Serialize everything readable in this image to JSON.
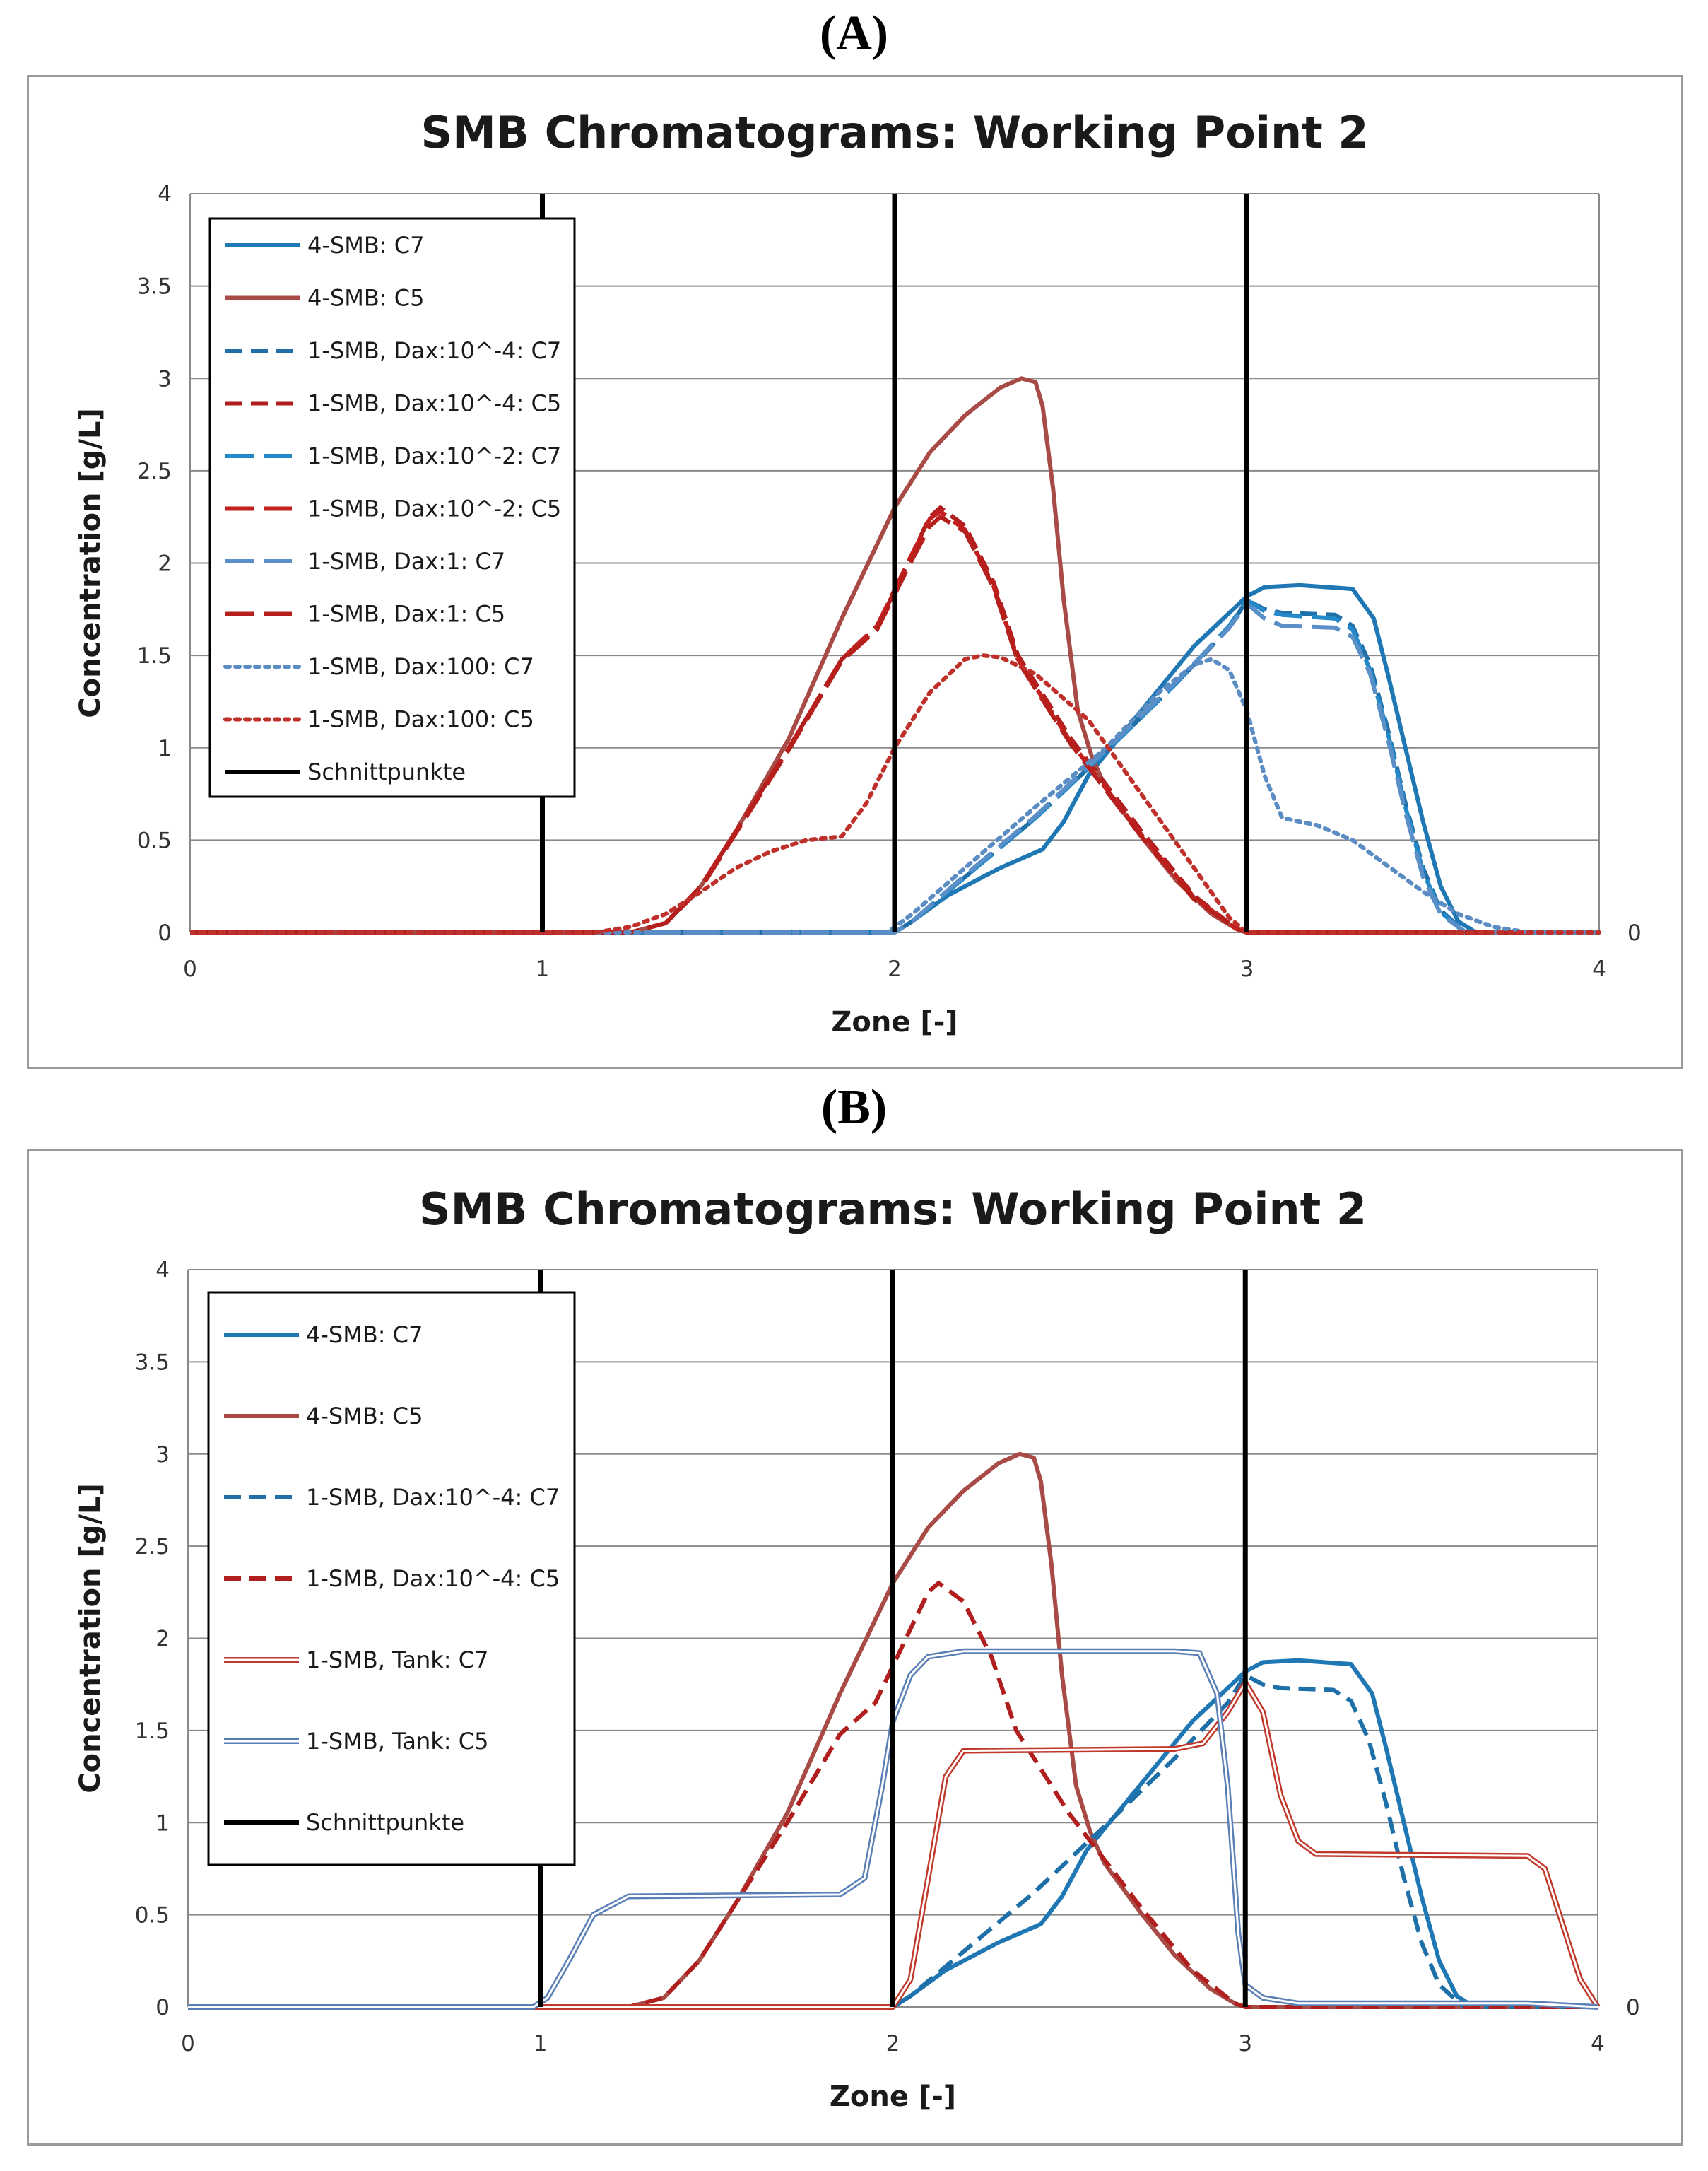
{
  "panels": [
    {
      "label": "(A)",
      "chart_data": {
        "type": "line",
        "title": "SMB Chromatograms: Working Point 2",
        "xlabel": "Zone [-]",
        "ylabel": "Concentration [g/L]",
        "xlim": [
          0,
          4
        ],
        "ylim": [
          0,
          4
        ],
        "xticks": [
          "0",
          "1",
          "2",
          "3",
          "4"
        ],
        "yticks": [
          "0",
          "0.5",
          "1",
          "1.5",
          "2",
          "2.5",
          "3",
          "3.5",
          "4"
        ],
        "secondary_y_tick": "0",
        "grid": true,
        "legend_position": "top-left",
        "vlines": [
          1,
          2,
          3
        ],
        "series": [
          {
            "name": "4-SMB: C7",
            "color": "#1f77b4",
            "style": "solid",
            "width": 6,
            "x": [
              0,
              2.0,
              2.05,
              2.15,
              2.3,
              2.42,
              2.48,
              2.55,
              2.7,
              2.85,
              3.0,
              3.05,
              3.15,
              3.3,
              3.36,
              3.4,
              3.45,
              3.5,
              3.55,
              3.6,
              3.65,
              4.0
            ],
            "y": [
              0,
              0,
              0.06,
              0.2,
              0.35,
              0.45,
              0.6,
              0.85,
              1.2,
              1.55,
              1.82,
              1.87,
              1.88,
              1.86,
              1.7,
              1.4,
              1.0,
              0.6,
              0.25,
              0.06,
              0,
              0
            ]
          },
          {
            "name": "4-SMB: C5",
            "color": "#a84a45",
            "style": "solid",
            "width": 6,
            "x": [
              0,
              1.25,
              1.35,
              1.45,
              1.55,
              1.7,
              1.85,
              2.0,
              2.1,
              2.2,
              2.3,
              2.36,
              2.4,
              2.42,
              2.45,
              2.48,
              2.52,
              2.56,
              2.6,
              2.7,
              2.8,
              2.9,
              2.97,
              3.0,
              4.0
            ],
            "y": [
              0,
              0,
              0.05,
              0.25,
              0.55,
              1.05,
              1.7,
              2.3,
              2.6,
              2.8,
              2.95,
              3.0,
              2.98,
              2.85,
              2.4,
              1.8,
              1.2,
              0.95,
              0.78,
              0.52,
              0.28,
              0.1,
              0.02,
              0,
              0
            ]
          },
          {
            "name": "1-SMB, Dax:10^-4: C7",
            "color": "#1f6fa8",
            "style": "dashed",
            "width": 6,
            "x": [
              0,
              2.0,
              2.05,
              2.2,
              2.4,
              2.6,
              2.8,
              2.95,
              3.0,
              3.05,
              3.1,
              3.25,
              3.3,
              3.35,
              3.4,
              3.45,
              3.5,
              3.55,
              3.62,
              4.0
            ],
            "y": [
              0,
              0,
              0.06,
              0.3,
              0.62,
              0.98,
              1.35,
              1.65,
              1.8,
              1.75,
              1.73,
              1.72,
              1.66,
              1.45,
              1.1,
              0.7,
              0.35,
              0.12,
              0,
              0
            ]
          },
          {
            "name": "1-SMB, Dax:10^-4: C5",
            "color": "#b01e1e",
            "style": "dashed",
            "width": 6,
            "x": [
              0,
              1.25,
              1.35,
              1.45,
              1.55,
              1.7,
              1.85,
              1.95,
              2.05,
              2.1,
              2.13,
              2.2,
              2.28,
              2.35,
              2.5,
              2.7,
              2.85,
              2.97,
              3.0,
              4.0
            ],
            "y": [
              0,
              0,
              0.05,
              0.25,
              0.55,
              1.0,
              1.48,
              1.65,
              2.05,
              2.25,
              2.3,
              2.2,
              1.9,
              1.5,
              1.05,
              0.55,
              0.2,
              0.02,
              0,
              0
            ]
          },
          {
            "name": "1-SMB, Dax:10^-2: C7",
            "color": "#2389c9",
            "style": "longdash",
            "width": 6,
            "x": [
              0,
              2.0,
              2.05,
              2.2,
              2.4,
              2.6,
              2.8,
              2.95,
              3.0,
              3.05,
              3.1,
              3.25,
              3.3,
              3.35,
              3.4,
              3.45,
              3.5,
              3.55,
              3.62,
              4.0
            ],
            "y": [
              0,
              0,
              0.06,
              0.3,
              0.62,
              0.98,
              1.35,
              1.66,
              1.8,
              1.74,
              1.72,
              1.7,
              1.64,
              1.42,
              1.08,
              0.68,
              0.33,
              0.11,
              0,
              0
            ]
          },
          {
            "name": "1-SMB, Dax:10^-2: C5",
            "color": "#c41f1f",
            "style": "longdash",
            "width": 6,
            "x": [
              0,
              1.25,
              1.35,
              1.45,
              1.55,
              1.7,
              1.85,
              1.95,
              2.05,
              2.1,
              2.13,
              2.2,
              2.28,
              2.35,
              2.5,
              2.7,
              2.85,
              2.97,
              3.0,
              4.0
            ],
            "y": [
              0,
              0,
              0.05,
              0.25,
              0.55,
              1.0,
              1.48,
              1.66,
              2.05,
              2.24,
              2.28,
              2.18,
              1.88,
              1.48,
              1.03,
              0.53,
              0.19,
              0.02,
              0,
              0
            ]
          },
          {
            "name": "1-SMB, Dax:1: C7",
            "color": "#5a8fc8",
            "style": "longdash",
            "width": 6,
            "x": [
              0,
              2.0,
              2.05,
              2.2,
              2.4,
              2.6,
              2.8,
              2.95,
              3.0,
              3.05,
              3.1,
              3.25,
              3.3,
              3.35,
              3.4,
              3.45,
              3.5,
              3.55,
              3.62,
              4.0
            ],
            "y": [
              0,
              0,
              0.06,
              0.31,
              0.63,
              0.99,
              1.36,
              1.65,
              1.78,
              1.7,
              1.66,
              1.65,
              1.6,
              1.4,
              1.05,
              0.65,
              0.3,
              0.1,
              0,
              0
            ]
          },
          {
            "name": "1-SMB, Dax:1: C5",
            "color": "#b5201d",
            "style": "longdash",
            "width": 6,
            "x": [
              0,
              1.25,
              1.35,
              1.45,
              1.55,
              1.7,
              1.85,
              1.95,
              2.05,
              2.1,
              2.13,
              2.2,
              2.28,
              2.35,
              2.5,
              2.7,
              2.85,
              2.97,
              3.0,
              4.0
            ],
            "y": [
              0,
              0,
              0.05,
              0.24,
              0.54,
              0.99,
              1.47,
              1.64,
              2.02,
              2.2,
              2.25,
              2.17,
              1.87,
              1.47,
              1.02,
              0.52,
              0.18,
              0.02,
              0,
              0
            ]
          },
          {
            "name": "1-SMB, Dax:100: C7",
            "color": "#5b8dc4",
            "style": "dotted",
            "width": 6,
            "x": [
              0,
              1.98,
              2.05,
              2.2,
              2.4,
              2.6,
              2.75,
              2.85,
              2.9,
              2.95,
              3.0,
              3.05,
              3.1,
              3.2,
              3.3,
              3.4,
              3.5,
              3.6,
              3.7,
              3.8,
              4.0
            ],
            "y": [
              0,
              0,
              0.1,
              0.35,
              0.68,
              1.0,
              1.3,
              1.45,
              1.48,
              1.42,
              1.2,
              0.85,
              0.62,
              0.58,
              0.5,
              0.36,
              0.22,
              0.1,
              0.03,
              0,
              0
            ]
          },
          {
            "name": "1-SMB, Dax:100: C5",
            "color": "#c0302b",
            "style": "dotted",
            "width": 6,
            "x": [
              0,
              1.15,
              1.25,
              1.35,
              1.45,
              1.55,
              1.65,
              1.75,
              1.85,
              1.92,
              2.0,
              2.1,
              2.2,
              2.25,
              2.3,
              2.4,
              2.55,
              2.7,
              2.85,
              2.95,
              3.0,
              4.0
            ],
            "y": [
              0,
              0,
              0.03,
              0.1,
              0.22,
              0.35,
              0.44,
              0.5,
              0.52,
              0.7,
              1.0,
              1.3,
              1.48,
              1.5,
              1.49,
              1.4,
              1.15,
              0.75,
              0.35,
              0.08,
              0,
              0
            ]
          }
        ],
        "vline_legend": {
          "name": "Schnittpunkte",
          "color": "#000000"
        }
      }
    },
    {
      "label": "(B)",
      "chart_data": {
        "type": "line",
        "title": "SMB Chromatograms: Working Point 2",
        "xlabel": "Zone [-]",
        "ylabel": "Concentration [g/L]",
        "xlim": [
          0,
          4
        ],
        "ylim": [
          0,
          4
        ],
        "xticks": [
          "0",
          "1",
          "2",
          "3",
          "4"
        ],
        "yticks": [
          "0",
          "0.5",
          "1",
          "1.5",
          "2",
          "2.5",
          "3",
          "3.5",
          "4"
        ],
        "secondary_y_tick": "0",
        "grid": true,
        "legend_position": "top-left",
        "vlines": [
          1,
          2,
          3
        ],
        "series": [
          {
            "name": "4-SMB: C7",
            "color": "#1f77b4",
            "style": "solid",
            "width": 6,
            "x": [
              0,
              2.0,
              2.05,
              2.15,
              2.3,
              2.42,
              2.48,
              2.55,
              2.7,
              2.85,
              3.0,
              3.05,
              3.15,
              3.3,
              3.36,
              3.4,
              3.45,
              3.5,
              3.55,
              3.6,
              3.65,
              4.0
            ],
            "y": [
              0,
              0,
              0.06,
              0.2,
              0.35,
              0.45,
              0.6,
              0.85,
              1.2,
              1.55,
              1.82,
              1.87,
              1.88,
              1.86,
              1.7,
              1.4,
              1.0,
              0.6,
              0.25,
              0.06,
              0,
              0
            ]
          },
          {
            "name": "4-SMB: C5",
            "color": "#a84a45",
            "style": "solid",
            "width": 6,
            "x": [
              0,
              1.25,
              1.35,
              1.45,
              1.55,
              1.7,
              1.85,
              2.0,
              2.1,
              2.2,
              2.3,
              2.36,
              2.4,
              2.42,
              2.45,
              2.48,
              2.52,
              2.56,
              2.6,
              2.7,
              2.8,
              2.9,
              2.97,
              3.0,
              4.0
            ],
            "y": [
              0,
              0,
              0.05,
              0.25,
              0.55,
              1.05,
              1.7,
              2.3,
              2.6,
              2.8,
              2.95,
              3.0,
              2.98,
              2.85,
              2.4,
              1.8,
              1.2,
              0.95,
              0.78,
              0.52,
              0.28,
              0.1,
              0.02,
              0,
              0
            ]
          },
          {
            "name": "1-SMB, Dax:10^-4: C7",
            "color": "#1f6fa8",
            "style": "dashed",
            "width": 6,
            "x": [
              0,
              2.0,
              2.05,
              2.2,
              2.4,
              2.6,
              2.8,
              2.95,
              3.0,
              3.05,
              3.1,
              3.25,
              3.3,
              3.35,
              3.4,
              3.45,
              3.5,
              3.55,
              3.62,
              4.0
            ],
            "y": [
              0,
              0,
              0.06,
              0.3,
              0.62,
              0.98,
              1.35,
              1.65,
              1.8,
              1.75,
              1.73,
              1.72,
              1.66,
              1.45,
              1.1,
              0.7,
              0.35,
              0.12,
              0,
              0
            ]
          },
          {
            "name": "1-SMB, Dax:10^-4: C5",
            "color": "#b01e1e",
            "style": "dashed",
            "width": 6,
            "x": [
              0,
              1.25,
              1.35,
              1.45,
              1.55,
              1.7,
              1.85,
              1.95,
              2.05,
              2.1,
              2.13,
              2.2,
              2.28,
              2.35,
              2.5,
              2.7,
              2.85,
              2.97,
              3.0,
              4.0
            ],
            "y": [
              0,
              0,
              0.05,
              0.25,
              0.55,
              1.0,
              1.48,
              1.65,
              2.05,
              2.25,
              2.3,
              2.2,
              1.9,
              1.5,
              1.05,
              0.55,
              0.2,
              0.02,
              0,
              0
            ]
          },
          {
            "name": "1-SMB, Tank: C7",
            "color": "#c0392b",
            "style": "double",
            "width": 5,
            "x": [
              0,
              2.0,
              2.05,
              2.1,
              2.15,
              2.2,
              2.8,
              2.88,
              2.95,
              3.0,
              3.05,
              3.1,
              3.15,
              3.2,
              3.8,
              3.85,
              3.9,
              3.95,
              4.0
            ],
            "y": [
              0,
              0,
              0.15,
              0.7,
              1.25,
              1.39,
              1.4,
              1.43,
              1.6,
              1.76,
              1.6,
              1.15,
              0.9,
              0.83,
              0.82,
              0.75,
              0.45,
              0.15,
              0
            ]
          },
          {
            "name": "1-SMB, Tank: C5",
            "color": "#5a7fb5",
            "style": "double",
            "width": 5,
            "x": [
              0,
              0.98,
              1.02,
              1.08,
              1.15,
              1.25,
              1.85,
              1.92,
              1.97,
              2.0,
              2.05,
              2.1,
              2.2,
              2.8,
              2.87,
              2.92,
              2.95,
              2.98,
              3.0,
              3.05,
              3.15,
              3.8,
              3.9,
              4.0
            ],
            "y": [
              0,
              0,
              0.05,
              0.25,
              0.5,
              0.6,
              0.61,
              0.7,
              1.2,
              1.55,
              1.8,
              1.9,
              1.93,
              1.93,
              1.92,
              1.7,
              1.2,
              0.4,
              0.12,
              0.05,
              0.02,
              0.02,
              0.01,
              0
            ]
          }
        ],
        "vline_legend": {
          "name": "Schnittpunkte",
          "color": "#000000"
        }
      }
    }
  ]
}
